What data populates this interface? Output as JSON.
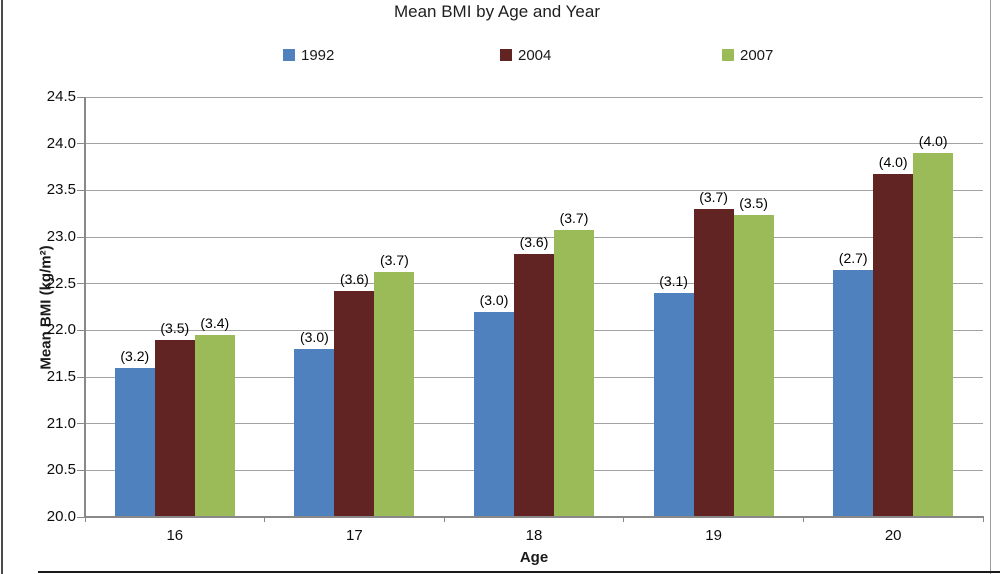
{
  "chart_data": {
    "type": "bar",
    "title": "Mean BMI by Age and Year",
    "xlabel": "Age",
    "ylabel": "Mean BMI (kg/m²)",
    "categories": [
      "16",
      "17",
      "18",
      "19",
      "20"
    ],
    "series": [
      {
        "name": "1992",
        "color": "#4E81BD",
        "values": [
          21.6,
          21.8,
          22.2,
          22.4,
          22.65
        ],
        "data_labels": [
          "(3.2)",
          "(3.0)",
          "(3.0)",
          "(3.1)",
          "(2.7)"
        ]
      },
      {
        "name": "2004",
        "color": "#612423",
        "values": [
          21.9,
          22.42,
          22.82,
          23.3,
          23.68
        ],
        "data_labels": [
          "(3.5)",
          "(3.6)",
          "(3.6)",
          "(3.7)",
          "(4.0)"
        ]
      },
      {
        "name": "2007",
        "color": "#9BBB59",
        "values": [
          21.95,
          22.62,
          23.07,
          23.24,
          23.9
        ],
        "data_labels": [
          "(3.4)",
          "(3.7)",
          "(3.7)",
          "(3.5)",
          "(4.0)"
        ]
      }
    ],
    "ylim": [
      20.0,
      24.5
    ],
    "ytick_step": 0.5,
    "ytick_decimals": 1,
    "grid": true,
    "legend_position": "top"
  }
}
